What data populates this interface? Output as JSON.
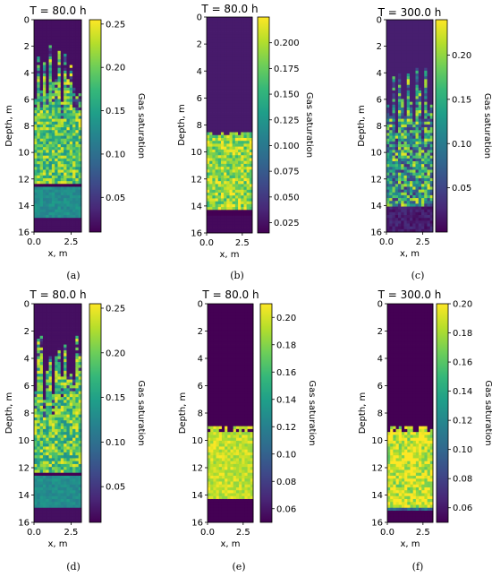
{
  "chart_data": [
    {
      "type": "heatmap",
      "panel_label": "(a)",
      "title": "T = 80.0 h",
      "xlabel": "x, m",
      "ylabel": "Depth, m",
      "xlim": [
        0,
        3.2
      ],
      "ylim": [
        16,
        0
      ],
      "xticks": [
        "0.0",
        "2.5"
      ],
      "yticks": [
        "0",
        "2",
        "4",
        "6",
        "8",
        "10",
        "12",
        "14",
        "16"
      ],
      "colorbar": {
        "label": "Gas saturation",
        "min": 0.01,
        "max": 0.255,
        "ticks": [
          "0.05",
          "0.10",
          "0.15",
          "0.20",
          "0.25"
        ]
      },
      "field": {
        "grid_cols": 16,
        "grid_rows": 75,
        "gas_front_depth": 2.0,
        "front_jagged": true,
        "plume_value": 0.19,
        "plume_noise": 0.06,
        "lower_zone_top": 12.3,
        "lower_zone_bottom": 15.0,
        "lower_zone_value": 0.13,
        "dark_streak_depth": 12.5,
        "below_bottom_value": 0.02,
        "background_value": 0.02
      }
    },
    {
      "type": "heatmap",
      "panel_label": "(b)",
      "title": "T = 80.0 h",
      "xlabel": "x, m",
      "ylabel": "Depth, m",
      "xlim": [
        0,
        3.2
      ],
      "ylim": [
        16,
        0
      ],
      "xticks": [
        "0.0",
        "2.5"
      ],
      "yticks": [
        "0",
        "2",
        "4",
        "6",
        "8",
        "10",
        "12",
        "14",
        "16"
      ],
      "colorbar": {
        "label": "Gas saturation",
        "min": 0.015,
        "max": 0.225,
        "ticks": [
          "0.025",
          "0.050",
          "0.075",
          "0.100",
          "0.125",
          "0.150",
          "0.175",
          "0.200"
        ]
      },
      "field": {
        "grid_cols": 16,
        "grid_rows": 75,
        "gas_front_depth": 8.5,
        "front_jagged": false,
        "plume_value": 0.19,
        "plume_noise": 0.04,
        "lower_zone_top": 14.2,
        "lower_zone_bottom": 14.7,
        "lower_zone_value": 0.06,
        "dark_streak_depth": 14.5,
        "below_bottom_value": 0.02,
        "background_value": 0.03
      }
    },
    {
      "type": "heatmap",
      "panel_label": "(c)",
      "title": "T = 300.0 h",
      "xlabel": "x, m",
      "ylabel": "Depth, m",
      "xlim": [
        0,
        3.2
      ],
      "ylim": [
        16,
        0
      ],
      "xticks": [
        "0.0",
        "2.5"
      ],
      "yticks": [
        "0",
        "2",
        "4",
        "6",
        "8",
        "10",
        "12",
        "14",
        "16"
      ],
      "colorbar": {
        "label": "Gas saturation",
        "min": 0.0,
        "max": 0.24,
        "ticks": [
          "0.05",
          "0.10",
          "0.15",
          "0.20"
        ]
      },
      "field": {
        "grid_cols": 16,
        "grid_rows": 75,
        "gas_front_depth": 3.5,
        "front_jagged": true,
        "plume_value": 0.13,
        "plume_noise": 0.1,
        "lower_zone_top": 14.0,
        "lower_zone_bottom": 16.0,
        "lower_zone_value": 0.02,
        "dark_streak_depth": -1,
        "below_bottom_value": 0.02,
        "background_value": 0.02
      }
    },
    {
      "type": "heatmap",
      "panel_label": "(d)",
      "title": "T = 80.0 h",
      "xlabel": "x, m",
      "ylabel": "Depth, m",
      "xlim": [
        0,
        3.2
      ],
      "ylim": [
        16,
        0
      ],
      "xticks": [
        "0.0",
        "2.5"
      ],
      "yticks": [
        "0",
        "2",
        "4",
        "6",
        "8",
        "10",
        "12",
        "14",
        "16"
      ],
      "colorbar": {
        "label": "Gas saturation",
        "min": 0.01,
        "max": 0.255,
        "ticks": [
          "0.05",
          "0.10",
          "0.15",
          "0.20",
          "0.25"
        ]
      },
      "field": {
        "grid_cols": 16,
        "grid_rows": 75,
        "gas_front_depth": 2.0,
        "front_jagged": true,
        "plume_value": 0.19,
        "plume_noise": 0.06,
        "lower_zone_top": 12.3,
        "lower_zone_bottom": 15.0,
        "lower_zone_value": 0.13,
        "dark_streak_depth": 12.5,
        "below_bottom_value": 0.02,
        "background_value": 0.02
      }
    },
    {
      "type": "heatmap",
      "panel_label": "(e)",
      "title": "T = 80.0 h",
      "xlabel": "x, m",
      "ylabel": "Depth, m",
      "xlim": [
        0,
        3.2
      ],
      "ylim": [
        16,
        0
      ],
      "xticks": [
        "0.0",
        "2.5"
      ],
      "yticks": [
        "0",
        "2",
        "4",
        "6",
        "8",
        "10",
        "12",
        "14",
        "16"
      ],
      "colorbar": {
        "label": "Gas saturation",
        "min": 0.05,
        "max": 0.21,
        "ticks": [
          "0.06",
          "0.08",
          "0.10",
          "0.12",
          "0.14",
          "0.16",
          "0.18",
          "0.20"
        ]
      },
      "field": {
        "grid_cols": 16,
        "grid_rows": 75,
        "gas_front_depth": 9.0,
        "front_jagged": false,
        "plume_value": 0.195,
        "plume_noise": 0.015,
        "lower_zone_top": 14.3,
        "lower_zone_bottom": 14.7,
        "lower_zone_value": 0.1,
        "dark_streak_depth": 14.5,
        "below_bottom_value": 0.05,
        "background_value": 0.05
      }
    },
    {
      "type": "heatmap",
      "panel_label": "(f)",
      "title": "T = 300.0 h",
      "xlabel": "x, m",
      "ylabel": "Depth, m",
      "xlim": [
        0,
        3.2
      ],
      "ylim": [
        16,
        0
      ],
      "xticks": [
        "0.0",
        "2.5"
      ],
      "yticks": [
        "0",
        "2",
        "4",
        "6",
        "8",
        "10",
        "12",
        "14",
        "16"
      ],
      "colorbar": {
        "label": "Gas saturation",
        "min": 0.05,
        "max": 0.2,
        "ticks": [
          "0.06",
          "0.08",
          "0.10",
          "0.12",
          "0.14",
          "0.16",
          "0.18",
          "0.20"
        ]
      },
      "field": {
        "grid_cols": 16,
        "grid_rows": 75,
        "gas_front_depth": 9.0,
        "front_jagged": false,
        "plume_value": 0.19,
        "plume_noise": 0.03,
        "lower_zone_top": 15.0,
        "lower_zone_bottom": 15.2,
        "lower_zone_value": 0.1,
        "dark_streak_depth": -1,
        "below_bottom_value": 0.05,
        "background_value": 0.05
      }
    }
  ],
  "colormap": "viridis",
  "colormap_stops": [
    "#440154",
    "#482878",
    "#3e4989",
    "#31688e",
    "#26828e",
    "#1f9e89",
    "#35b779",
    "#6ece58",
    "#b5de2b",
    "#fde725"
  ]
}
